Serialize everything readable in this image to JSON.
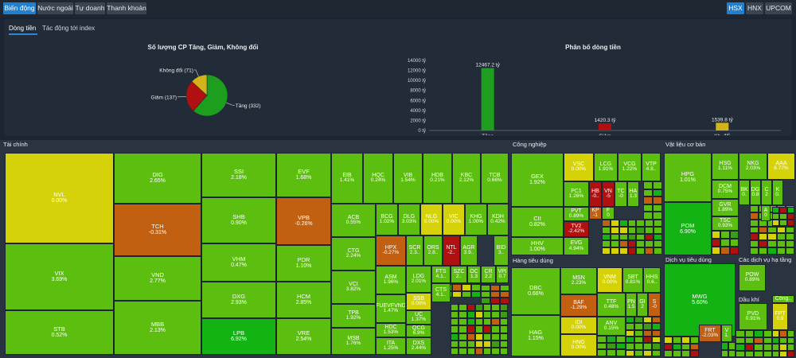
{
  "top_tabs": [
    {
      "label": "Biến động",
      "active": true
    },
    {
      "label": "Nước ngoài"
    },
    {
      "label": "Tự doanh"
    },
    {
      "label": "Thanh khoản"
    }
  ],
  "exchange_tabs": [
    {
      "label": "HSX",
      "active": true
    },
    {
      "label": "HNX"
    },
    {
      "label": "UPCOM"
    }
  ],
  "sub_tabs": [
    {
      "label": "Dòng tiền",
      "active": true
    },
    {
      "label": "Tác động tới index"
    }
  ],
  "pie_chart": {
    "title": "Số lượng CP Tăng, Giảm, Không đổi"
  },
  "bar_chart": {
    "title": "Phân bố dòng tiền"
  },
  "colors": {
    "up": "#1e9e1e",
    "down": "#b01010",
    "flat": "#d4b21a",
    "up_strong": "#12b312",
    "up_mid": "#5cbf10",
    "ceil_yellow": "#d6d20a",
    "down_orange": "#c06010"
  },
  "chart_data": [
    {
      "type": "pie",
      "title": "Số lượng CP Tăng, Giảm, Không đổi",
      "labels": [
        "Tăng (332)",
        "Giảm (137)",
        "Không đổi (71)"
      ],
      "values": [
        332,
        137,
        71
      ],
      "colors": [
        "#1e9e1e",
        "#b01010",
        "#d4b21a"
      ]
    },
    {
      "type": "bar",
      "title": "Phân bố dòng tiền",
      "categories": [
        "Tăng",
        "Giảm",
        "Kh. đổi"
      ],
      "values": [
        12467.2,
        1420.3,
        1539.8
      ],
      "value_labels": [
        "12467.2 tỷ",
        "1420.3 tỷ",
        "1539.8 tỷ"
      ],
      "ytick_labels": [
        "0 tỷ",
        "2000 tỷ",
        "4000 tỷ",
        "6000 tỷ",
        "8000 tỷ",
        "10000 tỷ",
        "12000 tỷ",
        "14000 tỷ"
      ],
      "ylim": [
        0,
        14000
      ],
      "colors": [
        "#1e9e1e",
        "#b01010",
        "#d4b21a"
      ]
    }
  ],
  "sections": [
    {
      "title": "Tài chính"
    },
    {
      "title": "Công nghiệp"
    },
    {
      "title": "Vật liệu cơ bản"
    },
    {
      "title": "Hàng tiêu dùng"
    },
    {
      "title": "Dịch vụ tiêu dùng"
    },
    {
      "title": "Các dịch vụ hạ tầng"
    },
    {
      "title": "Dầu khí"
    }
  ],
  "cells": [
    {
      "t": "NVL",
      "p": "0.00%"
    },
    {
      "t": "VIX",
      "p": "3.69%"
    },
    {
      "t": "STB",
      "p": "0.52%"
    },
    {
      "t": "DIG",
      "p": "2.65%"
    },
    {
      "t": "TCH",
      "p": "-0.31%"
    },
    {
      "t": "VND",
      "p": "2.77%"
    },
    {
      "t": "MBB",
      "p": "2.13%"
    },
    {
      "t": "SSI",
      "p": "2.18%"
    },
    {
      "t": "SHB",
      "p": "0.90%"
    },
    {
      "t": "VHM",
      "p": "0.47%"
    },
    {
      "t": "DXG",
      "p": "2.93%"
    },
    {
      "t": "LPB",
      "p": "6.92%"
    },
    {
      "t": "EVF",
      "p": "1.68%"
    },
    {
      "t": "VPB",
      "p": "-0.26%"
    },
    {
      "t": "PDR",
      "p": "1.10%"
    },
    {
      "t": "HCM",
      "p": "2.85%"
    },
    {
      "t": "VRE",
      "p": "2.54%"
    },
    {
      "t": "EIB",
      "p": "1.41%"
    },
    {
      "t": "HQC",
      "p": "0.24%"
    },
    {
      "t": "VIB",
      "p": "1.54%"
    },
    {
      "t": "HDB",
      "p": "0.21%"
    },
    {
      "t": "KBC",
      "p": "2.12%"
    },
    {
      "t": "TCB",
      "p": "0.66%"
    },
    {
      "t": "ACB",
      "p": "0.55%"
    },
    {
      "t": "CTG",
      "p": "2.24%"
    },
    {
      "t": "VCI",
      "p": "3.82%"
    },
    {
      "t": "TPB",
      "p": "1.92%"
    },
    {
      "t": "MSB",
      "p": "1.76%"
    },
    {
      "t": "BCG",
      "p": "1.02%"
    },
    {
      "t": "DLG",
      "p": "3.03%"
    },
    {
      "t": "NLG",
      "p": "0.00%"
    },
    {
      "t": "VIC",
      "p": "0.00%"
    },
    {
      "t": "KHG",
      "p": "1.00%"
    },
    {
      "t": "KDH",
      "p": "0.42%"
    },
    {
      "t": "HPX",
      "p": "-0.27%"
    },
    {
      "t": "SCR",
      "p": "2.3.."
    },
    {
      "t": "ORS",
      "p": "2.8.."
    },
    {
      "t": "NTL",
      "p": "-2.."
    },
    {
      "t": "AGR",
      "p": "3.9.."
    },
    {
      "t": "BID",
      "p": "3.."
    },
    {
      "t": "ASM",
      "p": "1.96%"
    },
    {
      "t": "LDG",
      "p": "2.01%"
    },
    {
      "t": "FUEVFVND",
      "p": "1.47%"
    },
    {
      "t": "SSB",
      "p": "0.00%"
    },
    {
      "t": "HDC",
      "p": "1.53%"
    },
    {
      "t": "ITA",
      "p": "1.25%"
    },
    {
      "t": "CTS",
      "p": "4.1.."
    },
    {
      "t": "UC",
      "p": "1.37%"
    },
    {
      "t": "QCG",
      "p": "6.9%"
    },
    {
      "t": "DXS",
      "p": "2.44%"
    },
    {
      "t": "FTS",
      "p": "4.1.."
    },
    {
      "t": "SZC",
      "p": "2.."
    },
    {
      "t": "OC",
      "p": "1.3"
    },
    {
      "t": "CR",
      "p": "2.2"
    },
    {
      "t": "VPI",
      "p": "0.7"
    },
    {
      "t": "GEX",
      "p": "1.92%"
    },
    {
      "t": "CII",
      "p": "0.82%"
    },
    {
      "t": "HHV",
      "p": "1.00%"
    },
    {
      "t": "VSC",
      "p": "0.00%"
    },
    {
      "t": "LCG",
      "p": "1.91%"
    },
    {
      "t": "VCG",
      "p": "1.22%"
    },
    {
      "t": "VTP",
      "p": "4.8.."
    },
    {
      "t": "PC1",
      "p": "1.26%"
    },
    {
      "t": "HB",
      "p": "-0.."
    },
    {
      "t": "VN",
      "p": "-5"
    },
    {
      "t": "TC",
      "p": "-0"
    },
    {
      "t": "HA",
      "p": "1.3"
    },
    {
      "t": "PVT",
      "p": "0.89%"
    },
    {
      "t": "KP",
      "p": "-1"
    },
    {
      "t": "F",
      "p": "0"
    },
    {
      "t": "TV2",
      "p": "-2.42%"
    },
    {
      "t": "EVG",
      "p": "4.94%"
    },
    {
      "t": "HPG",
      "p": "1.01%"
    },
    {
      "t": "HSG",
      "p": "1.11%"
    },
    {
      "t": "NKG",
      "p": "2.03%"
    },
    {
      "t": "AAA",
      "p": "6.77%"
    },
    {
      "t": "DCM",
      "p": "0.75%"
    },
    {
      "t": "BK",
      "p": "0."
    },
    {
      "t": "DG",
      "p": "0.8"
    },
    {
      "t": "C",
      "p": "2"
    },
    {
      "t": "K",
      "p": "0."
    },
    {
      "t": "GVR",
      "p": "1.89%"
    },
    {
      "t": "TSC",
      "p": "0.93%"
    },
    {
      "t": "A",
      "p": "0"
    },
    {
      "t": "POM",
      "p": "6.90%"
    },
    {
      "t": "DBC",
      "p": "0.66%"
    },
    {
      "t": "HAG",
      "p": "1.15%"
    },
    {
      "t": "MSN",
      "p": "2.23%"
    },
    {
      "t": "BAF",
      "p": "-1.29%"
    },
    {
      "t": "IDI",
      "p": "0.00%"
    },
    {
      "t": "HNG",
      "p": "0.00%"
    },
    {
      "t": "VNM",
      "p": "0.00%"
    },
    {
      "t": "SBT",
      "p": "0.81%"
    },
    {
      "t": "HHS",
      "p": "0.6.."
    },
    {
      "t": "TTF",
      "p": "0.48%"
    },
    {
      "t": "PN",
      "p": "1.5"
    },
    {
      "t": "GI",
      "p": "2"
    },
    {
      "t": "S",
      "p": "-0"
    },
    {
      "t": "ANV",
      "p": "0.15%"
    },
    {
      "t": "MWG",
      "p": "5.60%"
    },
    {
      "t": "FRT",
      "p": "-2.03%"
    },
    {
      "t": "V",
      "p": "1."
    },
    {
      "t": "POW",
      "p": "0.89%"
    },
    {
      "t": "PVD",
      "p": "0.91%"
    },
    {
      "t": "FPT",
      "p": "0.9"
    },
    {
      "t": "Công..",
      "p": ""
    }
  ]
}
